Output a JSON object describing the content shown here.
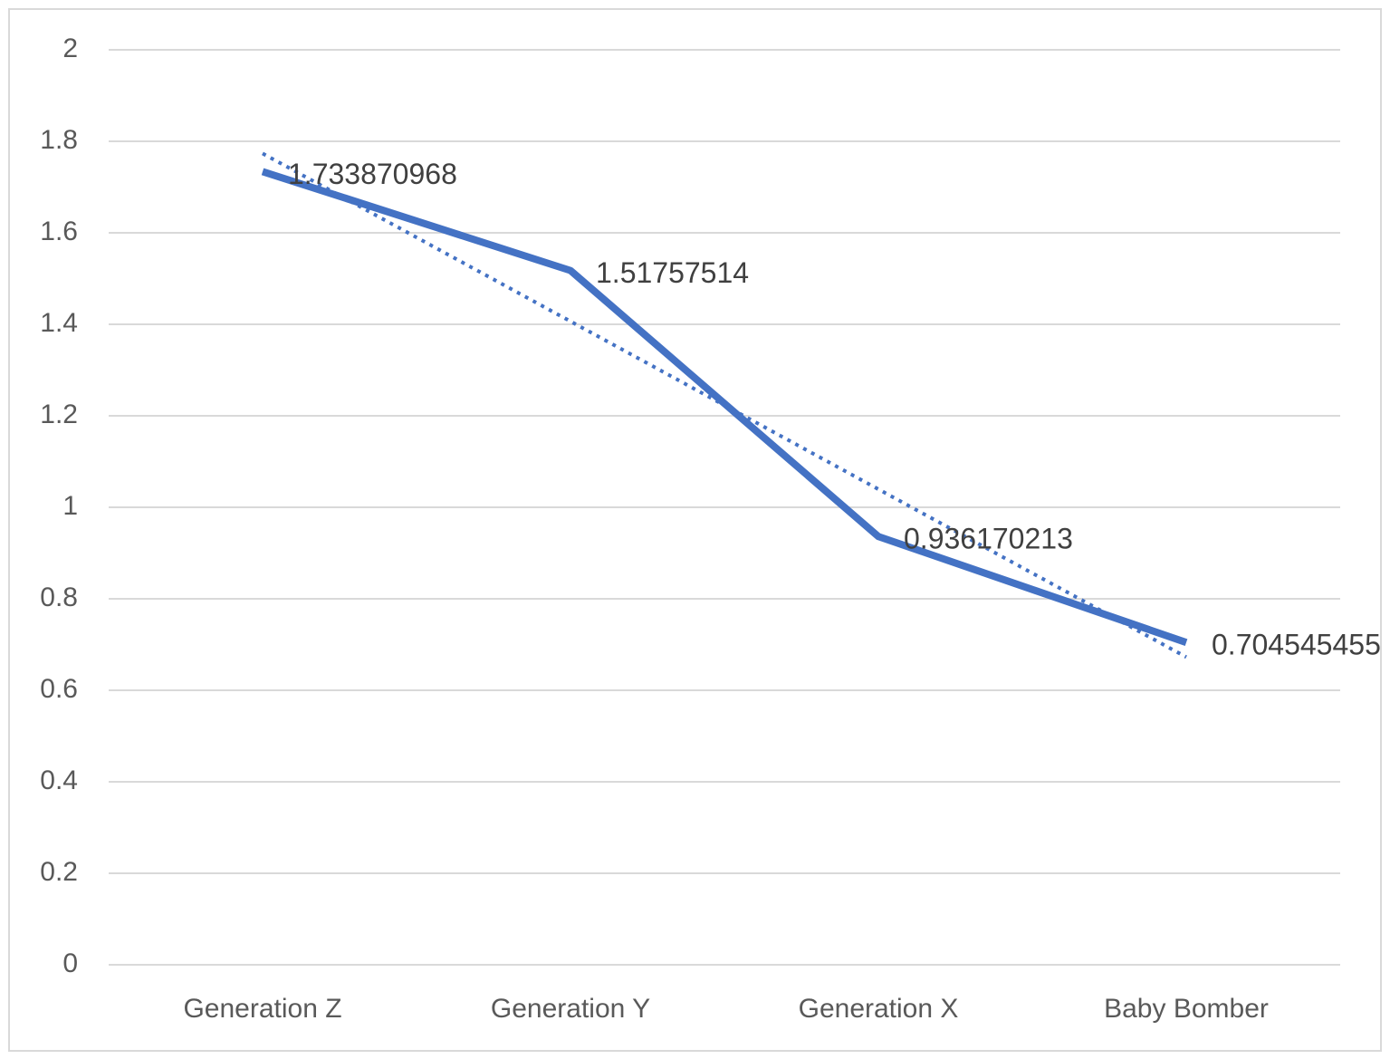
{
  "chart_data": {
    "type": "line",
    "categories": [
      "Generation Z",
      "Generation Y",
      "Generation X",
      "Baby Bomber"
    ],
    "series": [
      {
        "color": "#4472c4",
        "values": [
          1.733870968,
          1.51757514,
          0.936170213,
          0.704545455
        ]
      }
    ],
    "ylim": [
      0,
      2
    ],
    "yticks": [
      0,
      0.2,
      0.4,
      0.6,
      0.8,
      1,
      1.2,
      1.4,
      1.6,
      1.8,
      2
    ],
    "grid": true,
    "data_labels": true,
    "trendline": "linear"
  }
}
